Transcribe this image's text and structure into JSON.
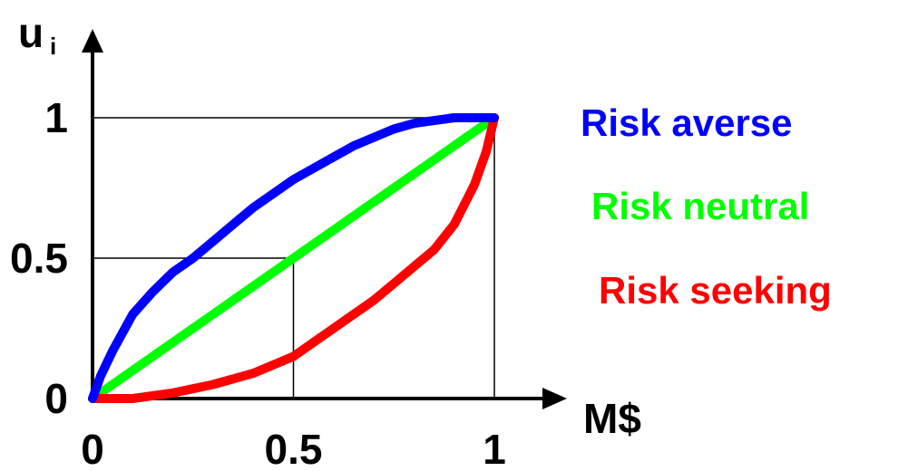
{
  "chart_data": {
    "type": "line",
    "x_axis_label": "M$",
    "y_axis_label": "u",
    "y_axis_label_subscript": "i",
    "x_ticks": [
      "0",
      "0.5",
      "1"
    ],
    "y_ticks": [
      "0",
      "0.5",
      "1"
    ],
    "xlim": [
      0,
      1
    ],
    "ylim": [
      0,
      1
    ],
    "reference_lines": [
      {
        "x": 0.5,
        "y": 0.5
      },
      {
        "x": 1,
        "y": 1
      }
    ],
    "series": [
      {
        "name": "Risk averse",
        "color": "#0000ff",
        "points": [
          [
            0,
            0
          ],
          [
            0.02,
            0.08
          ],
          [
            0.05,
            0.17
          ],
          [
            0.1,
            0.3
          ],
          [
            0.15,
            0.38
          ],
          [
            0.2,
            0.45
          ],
          [
            0.25,
            0.5
          ],
          [
            0.3,
            0.56
          ],
          [
            0.35,
            0.62
          ],
          [
            0.4,
            0.68
          ],
          [
            0.45,
            0.73
          ],
          [
            0.5,
            0.78
          ],
          [
            0.55,
            0.82
          ],
          [
            0.6,
            0.86
          ],
          [
            0.65,
            0.9
          ],
          [
            0.7,
            0.93
          ],
          [
            0.75,
            0.96
          ],
          [
            0.8,
            0.98
          ],
          [
            0.85,
            0.99
          ],
          [
            0.9,
            1.0
          ],
          [
            0.95,
            1.0
          ],
          [
            1,
            1.0
          ]
        ]
      },
      {
        "name": "Risk neutral",
        "color": "#00ff00",
        "points": [
          [
            0,
            0
          ],
          [
            1,
            1
          ]
        ]
      },
      {
        "name": "Risk seeking",
        "color": "#ff0000",
        "points": [
          [
            0,
            0
          ],
          [
            0.1,
            0
          ],
          [
            0.2,
            0.02
          ],
          [
            0.3,
            0.05
          ],
          [
            0.4,
            0.09
          ],
          [
            0.5,
            0.15
          ],
          [
            0.55,
            0.2
          ],
          [
            0.6,
            0.25
          ],
          [
            0.65,
            0.3
          ],
          [
            0.7,
            0.35
          ],
          [
            0.75,
            0.41
          ],
          [
            0.8,
            0.47
          ],
          [
            0.85,
            0.53
          ],
          [
            0.9,
            0.62
          ],
          [
            0.95,
            0.76
          ],
          [
            0.98,
            0.88
          ],
          [
            1,
            1
          ]
        ]
      }
    ]
  }
}
